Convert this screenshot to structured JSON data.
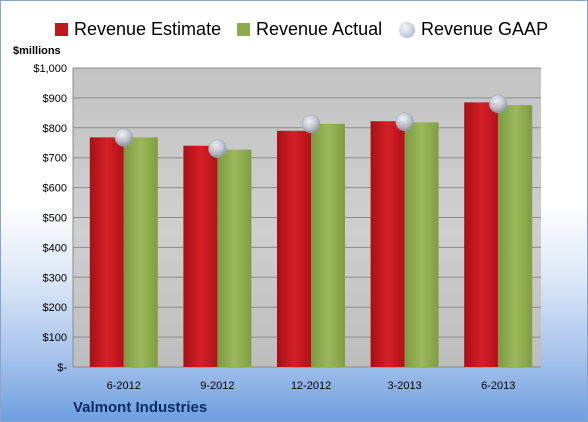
{
  "legend": {
    "estimate": "Revenue Estimate",
    "actual": "Revenue Actual",
    "gaap": "Revenue GAAP"
  },
  "units_label": "$millions",
  "company": "Valmont Industries",
  "colors": {
    "estimate": "#c0161c",
    "actual": "#8fac4c",
    "gaap": "#b8bfcc",
    "plot_background": "#c8c8c8"
  },
  "chart_data": {
    "type": "bar",
    "categories": [
      "6-2012",
      "9-2012",
      "12-2012",
      "3-2013",
      "6-2013"
    ],
    "series": [
      {
        "name": "Revenue Estimate",
        "values": [
          768,
          740,
          790,
          822,
          885
        ]
      },
      {
        "name": "Revenue Actual",
        "values": [
          768,
          727,
          813,
          818,
          876
        ]
      },
      {
        "name": "Revenue GAAP",
        "values": [
          768,
          730,
          813,
          820,
          880
        ]
      }
    ],
    "ylabel": "$millions",
    "ylim": [
      0,
      1000
    ],
    "ytick_values": [
      0,
      100,
      200,
      300,
      400,
      500,
      600,
      700,
      800,
      900,
      1000
    ],
    "ytick_labels": [
      "$-",
      "$100",
      "$200",
      "$300",
      "$400",
      "$500",
      "$600",
      "$700",
      "$800",
      "$900",
      "$1,000"
    ],
    "grid": true,
    "legend_position": "top"
  }
}
